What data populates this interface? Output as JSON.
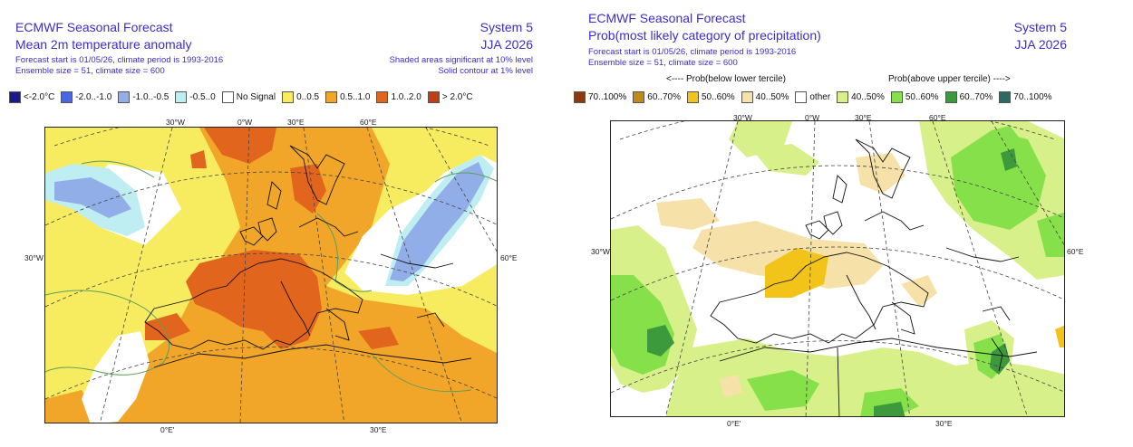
{
  "left": {
    "title1": "ECMWF Seasonal Forecast",
    "title2": "Mean 2m temperature anomaly",
    "info1": "Forecast start is 01/05/26, climate period is 1993-2016",
    "info2": "Ensemble size = 51, climate size = 600",
    "system": "System 5",
    "season": "JJA 2026",
    "sig1": "Shaded areas significant at 10% level",
    "sig2": "Solid contour at 1% level",
    "legend": [
      {
        "label": "<-2.0°C",
        "color": "#1a1a8c"
      },
      {
        "label": "-2.0..-1.0",
        "color": "#4a66e0"
      },
      {
        "label": "-1.0..-0.5",
        "color": "#92aee8"
      },
      {
        "label": "-0.5..0",
        "color": "#bfeef2"
      },
      {
        "label": "No Signal",
        "color": "#ffffff"
      },
      {
        "label": "0..0.5",
        "color": "#f7ec60"
      },
      {
        "label": "0.5..1.0",
        "color": "#f1a62a"
      },
      {
        "label": "1.0..2.0",
        "color": "#e2651d"
      },
      {
        "label": "> 2.0°C",
        "color": "#c23e12"
      }
    ],
    "coords": {
      "top_30w": "30°W",
      "top_0w": "0°W",
      "top_30e": "30°E",
      "top_60e": "60°E",
      "left_30w": "30°W",
      "right_60e": "60°E",
      "bottom_0e": "0°E'",
      "bottom_30e": "30°E"
    }
  },
  "right": {
    "title1": "ECMWF Seasonal Forecast",
    "title2": "Prob(most likely category of precipitation)",
    "info1": "Forecast start is 01/05/26, climate period is 1993-2016",
    "info2": "Ensemble size = 51, climate size = 600",
    "system": "System 5",
    "season": "JJA 2026",
    "lower_tercile": "<---- Prob(below lower tercile)",
    "upper_tercile": "Prob(above upper tercile) ---->",
    "legend": [
      {
        "label": "70..100%",
        "color": "#8a3a0e"
      },
      {
        "label": "60..70%",
        "color": "#c08a1a"
      },
      {
        "label": "50..60%",
        "color": "#f2c41a"
      },
      {
        "label": "40..50%",
        "color": "#f6e2a8"
      },
      {
        "label": "other",
        "color": "#ffffff"
      },
      {
        "label": "40..50%",
        "color": "#d8f08a"
      },
      {
        "label": "50..60%",
        "color": "#86e04a"
      },
      {
        "label": "60..70%",
        "color": "#3c9a3c"
      },
      {
        "label": "70..100%",
        "color": "#2a6a62"
      }
    ],
    "coords": {
      "top_30w": "30°W",
      "top_0w": "0°W",
      "top_30e": "30°E",
      "top_60e": "60°E",
      "left_30w": "30°W",
      "right_60e": "60°E",
      "bottom_0e": "0°E'",
      "bottom_30e": "30°E"
    }
  }
}
